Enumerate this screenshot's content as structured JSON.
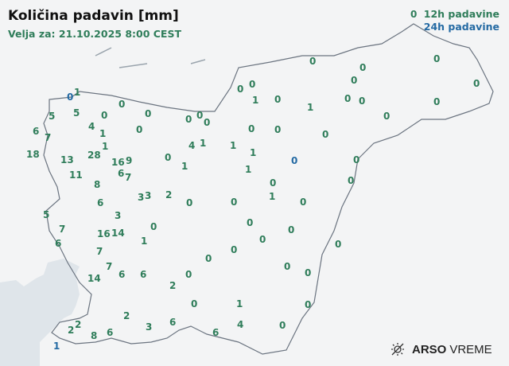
{
  "header": {
    "title": "Količina padavin [mm]",
    "valid": "Velja za: 21.10.2025 8:00 CEST"
  },
  "legend": {
    "12h": "12h padavine",
    "24h": "24h padavine"
  },
  "colors": {
    "12h": "#2f7d5a",
    "24h": "#246aa3",
    "sea": "#dfe5ea",
    "land": "#f3f4f5",
    "border": "#6b7480"
  },
  "logo": {
    "brand": "ARSO",
    "product": "VREME",
    "icon": "sun-weather-icon"
  },
  "stations_12h": [
    [
      "0",
      520,
      18
    ],
    [
      "0",
      393,
      77
    ],
    [
      "0",
      549,
      74
    ],
    [
      "0",
      456,
      85
    ],
    [
      "0",
      445,
      101
    ],
    [
      "0",
      599,
      105
    ],
    [
      "0",
      302,
      112
    ],
    [
      "0",
      317,
      106
    ],
    [
      "1",
      321,
      126
    ],
    [
      "0",
      349,
      125
    ],
    [
      "1",
      390,
      135
    ],
    [
      "0",
      437,
      124
    ],
    [
      "0",
      455,
      127
    ],
    [
      "0",
      549,
      128
    ],
    [
      "0",
      486,
      146
    ],
    [
      "1",
      96,
      116
    ],
    [
      "0",
      153,
      131
    ],
    [
      "0",
      186,
      143
    ],
    [
      "0",
      237,
      150
    ],
    [
      "0",
      251,
      145
    ],
    [
      "0",
      260,
      154
    ],
    [
      "5",
      65,
      146
    ],
    [
      "5",
      96,
      142
    ],
    [
      "0",
      131,
      145
    ],
    [
      "6",
      45,
      165
    ],
    [
      "7",
      60,
      173
    ],
    [
      "4",
      115,
      159
    ],
    [
      "1",
      129,
      168
    ],
    [
      "0",
      175,
      163
    ],
    [
      "0",
      316,
      162
    ],
    [
      "0",
      349,
      163
    ],
    [
      "0",
      409,
      169
    ],
    [
      "1",
      132,
      184
    ],
    [
      "4",
      241,
      183
    ],
    [
      "1",
      255,
      180
    ],
    [
      "1",
      293,
      183
    ],
    [
      "1",
      318,
      192
    ],
    [
      "18",
      41,
      194
    ],
    [
      "13",
      84,
      201
    ],
    [
      "28",
      118,
      195
    ],
    [
      "9",
      158,
      203
    ],
    [
      "16",
      152,
      207
    ],
    [
      "6",
      155,
      215
    ],
    [
      "7",
      158,
      223
    ],
    [
      "0",
      211,
      198
    ],
    [
      "1",
      232,
      209
    ],
    [
      "1",
      312,
      213
    ],
    [
      "0",
      448,
      201
    ],
    [
      "11",
      95,
      220
    ],
    [
      "8",
      122,
      232
    ],
    [
      "0",
      343,
      230
    ],
    [
      "0",
      441,
      227
    ],
    [
      "3",
      177,
      248
    ],
    [
      "3",
      185,
      246
    ],
    [
      "2",
      212,
      245
    ],
    [
      "0",
      238,
      255
    ],
    [
      "0",
      294,
      254
    ],
    [
      "1",
      342,
      247
    ],
    [
      "0",
      381,
      254
    ],
    [
      "6",
      126,
      255
    ],
    [
      "5",
      58,
      270
    ],
    [
      "3",
      148,
      271
    ],
    [
      "7",
      78,
      288
    ],
    [
      "6",
      73,
      306
    ],
    [
      "16",
      131,
      294
    ],
    [
      "14",
      148,
      293
    ],
    [
      "0",
      193,
      285
    ],
    [
      "1",
      181,
      303
    ],
    [
      "0",
      314,
      280
    ],
    [
      "0",
      366,
      289
    ],
    [
      "0",
      330,
      301
    ],
    [
      "7",
      125,
      316
    ],
    [
      "7",
      137,
      335
    ],
    [
      "0",
      262,
      325
    ],
    [
      "0",
      294,
      314
    ],
    [
      "0",
      425,
      307
    ],
    [
      "14",
      118,
      350
    ],
    [
      "6",
      153,
      345
    ],
    [
      "6",
      180,
      345
    ],
    [
      "0",
      237,
      345
    ],
    [
      "0",
      361,
      335
    ],
    [
      "0",
      387,
      343
    ],
    [
      "2",
      217,
      359
    ],
    [
      "0",
      244,
      382
    ],
    [
      "1",
      301,
      382
    ],
    [
      "0",
      387,
      383
    ],
    [
      "2",
      159,
      397
    ],
    [
      "2",
      96,
      408
    ],
    [
      "2",
      90,
      415
    ],
    [
      "3",
      187,
      411
    ],
    [
      "6",
      217,
      405
    ],
    [
      "8",
      118,
      422
    ],
    [
      "6",
      138,
      418
    ],
    [
      "6",
      271,
      418
    ],
    [
      "4",
      302,
      408
    ],
    [
      "0",
      355,
      409
    ]
  ],
  "stations_24h": [
    [
      "0",
      89,
      122
    ],
    [
      "0",
      370,
      202
    ],
    [
      "1",
      71,
      435
    ]
  ]
}
